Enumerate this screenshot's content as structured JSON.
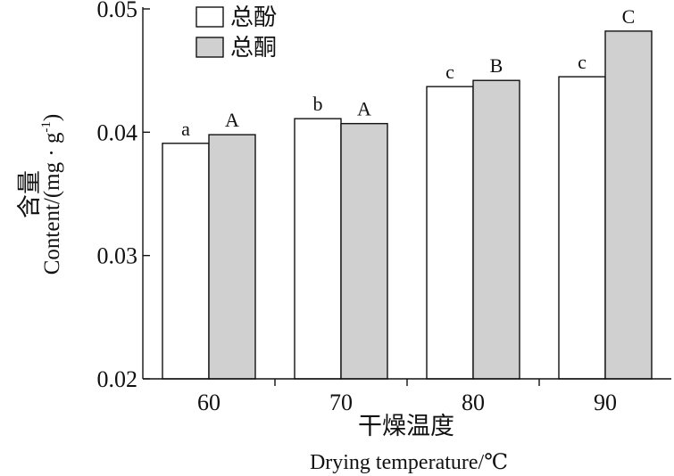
{
  "chart_data": {
    "type": "bar",
    "categories": [
      "60",
      "70",
      "80",
      "90"
    ],
    "series": [
      {
        "name": "总酚",
        "color": "#ffffff",
        "values": [
          0.0391,
          0.0411,
          0.0437,
          0.0445
        ],
        "labels": [
          "a",
          "b",
          "c",
          "c"
        ]
      },
      {
        "name": "总酮",
        "color": "#d0d0d0",
        "values": [
          0.0398,
          0.0407,
          0.0442,
          0.0482
        ],
        "labels": [
          "A",
          "A",
          "B",
          "C"
        ]
      }
    ],
    "ylim": [
      0.02,
      0.05
    ],
    "yticks": [
      "0.02",
      "0.03",
      "0.04",
      "0.05"
    ],
    "xlabel_cn": "干燥温度",
    "xlabel_en": "Drying temperature/℃",
    "ylabel_cn": "含量",
    "ylabel_en": "Content/(mg · g",
    "ylabel_sup": "-1",
    "ylabel_end": ")",
    "legend_position": "top-left",
    "grid": false
  }
}
